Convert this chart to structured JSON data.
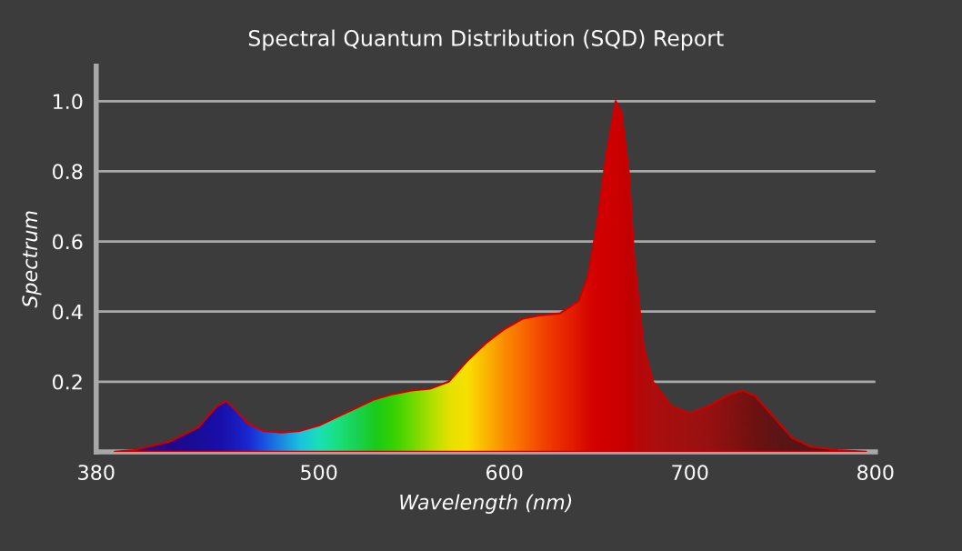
{
  "chart_data": {
    "type": "area",
    "title": "Spectral Quantum Distribution (SQD) Report",
    "xlabel": "Wavelength (nm)",
    "ylabel": "Spectrum",
    "x": [
      390,
      400,
      420,
      435,
      445,
      450,
      455,
      462,
      470,
      480,
      490,
      500,
      510,
      520,
      530,
      540,
      550,
      560,
      570,
      580,
      590,
      600,
      610,
      620,
      630,
      640,
      645,
      650,
      655,
      660,
      663,
      667,
      670,
      675,
      680,
      690,
      700,
      710,
      720,
      728,
      735,
      745,
      755,
      765,
      780,
      795
    ],
    "series": [
      {
        "color": "#cc0000",
        "values": [
          0,
          0.005,
          0.03,
          0.07,
          0.13,
          0.145,
          0.12,
          0.08,
          0.06,
          0.055,
          0.06,
          0.075,
          0.1,
          0.125,
          0.15,
          0.165,
          0.175,
          0.18,
          0.2,
          0.26,
          0.31,
          0.35,
          0.38,
          0.39,
          0.395,
          0.43,
          0.5,
          0.65,
          0.85,
          1.0,
          0.97,
          0.8,
          0.55,
          0.3,
          0.2,
          0.13,
          0.11,
          0.13,
          0.16,
          0.175,
          0.16,
          0.1,
          0.04,
          0.015,
          0.005,
          0
        ],
        "colors": [
          "#1a1a6e",
          "#1c1c8a",
          "#0a0aa0",
          "#0010b0",
          "#0010c0",
          "#0018c8",
          "#0020d8",
          "#0030f0",
          "#0060ff",
          "#00a0ff",
          "#00e0ff",
          "#00ffd0",
          "#00ff90",
          "#00f060",
          "#00e820",
          "#20f000",
          "#60f800",
          "#a8ff00",
          "#e8ff00",
          "#ffff00",
          "#ffd000",
          "#ffa000",
          "#ff7800",
          "#f85000",
          "#f03000",
          "#e01800",
          "#d80800",
          "#d40000",
          "#d00000",
          "#cc0000",
          "#c80000",
          "#c00000",
          "#b80808",
          "#b00c0c",
          "#a81010",
          "#a01212",
          "#981414",
          "#901414",
          "#801414",
          "#701414",
          "#601414",
          "#501818",
          "#481818",
          "#401c1c",
          "#3c1e1e",
          "#3c2020"
        ]
      }
    ],
    "xlim": [
      380,
      800
    ],
    "xticks": [
      380,
      500,
      600,
      700,
      800
    ],
    "ylim": [
      0,
      1.1
    ],
    "yticks": [
      0.2,
      0.4,
      0.6,
      0.8,
      {
        "value": 1,
        "label": "1.0"
      }
    ],
    "grid": "y"
  }
}
